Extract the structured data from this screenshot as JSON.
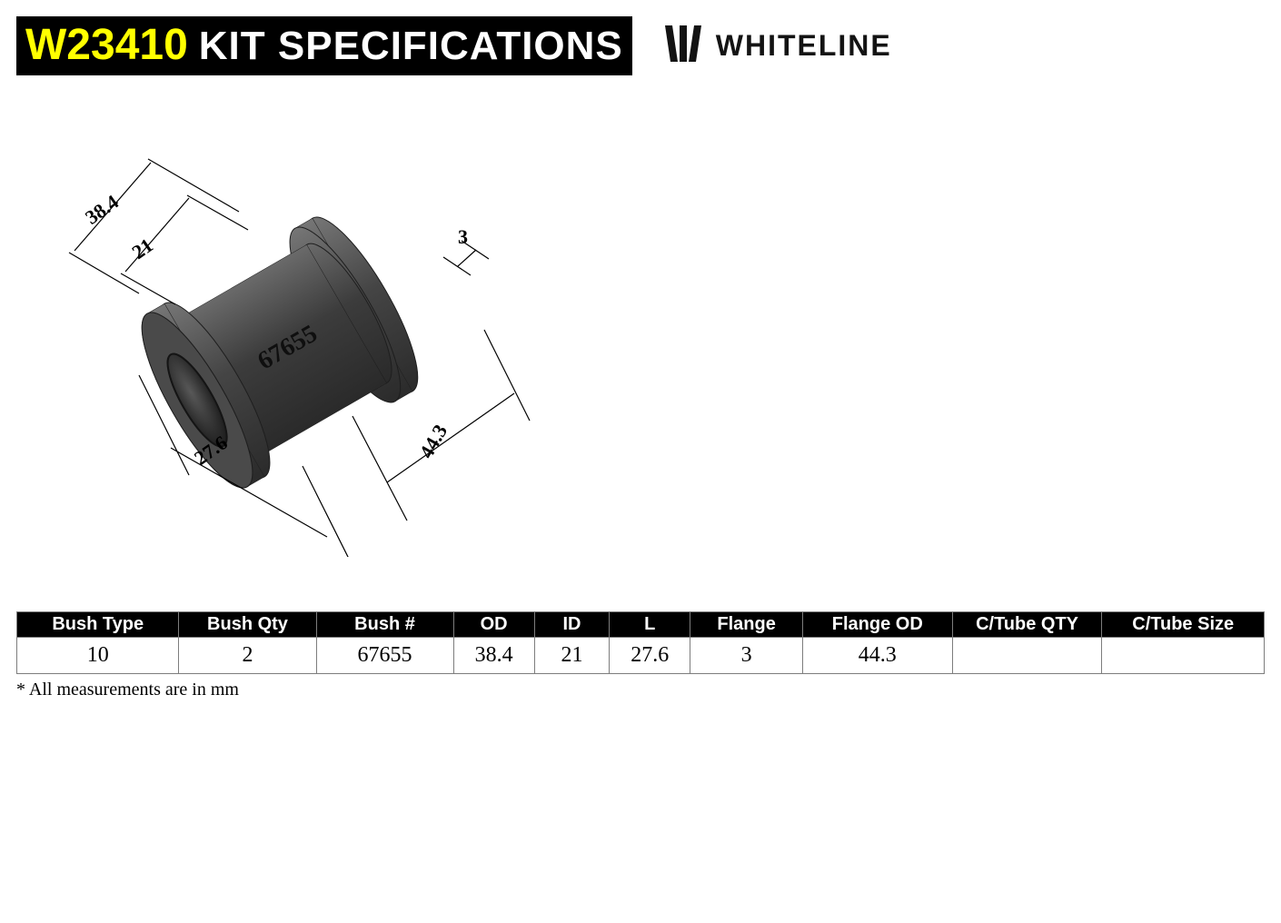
{
  "header": {
    "code": "W23410",
    "rest": "KIT SPECIFICATIONS",
    "brand": "WHITELINE"
  },
  "diagram": {
    "part_number": "67655",
    "dims": {
      "outer_diameter": "38.4",
      "inner_diameter": "21",
      "length": "27.6",
      "flange_thickness": "3",
      "flange_od": "44.3"
    },
    "colors": {
      "body_dark": "#3a3a3a",
      "body_mid": "#4c4c4c",
      "body_light": "#5a5a5a",
      "edge": "#1e1e1e",
      "dim_line": "#000000"
    }
  },
  "table": {
    "columns": [
      "Bush Type",
      "Bush Qty",
      "Bush #",
      "OD",
      "ID",
      "L",
      "Flange",
      "Flange OD",
      "C/Tube QTY",
      "C/Tube Size"
    ],
    "row": {
      "bush_type": "10",
      "bush_qty": "2",
      "bush_num": "67655",
      "od": "38.4",
      "id": "21",
      "l": "27.6",
      "flange": "3",
      "flange_od": "44.3",
      "ctube_qty": "",
      "ctube_size": ""
    },
    "col_widths_pct": [
      13,
      11,
      11,
      6.5,
      6,
      6.5,
      9,
      12,
      12,
      13
    ]
  },
  "footnote": "* All measurements are in mm"
}
